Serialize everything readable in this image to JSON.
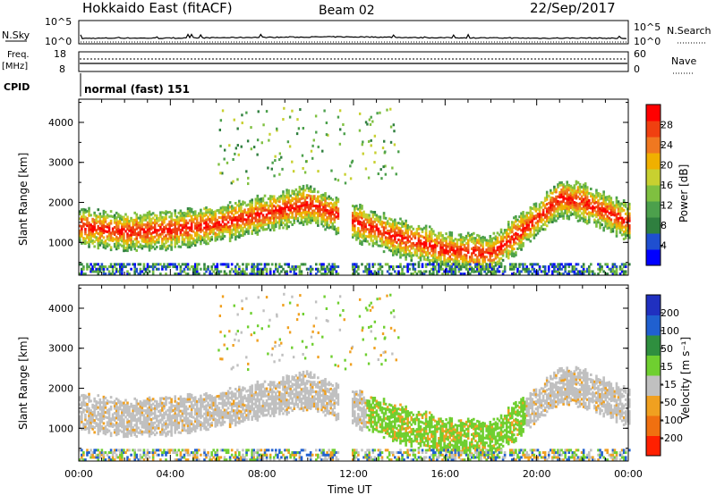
{
  "header": {
    "title": "Hokkaido East (fitACF)",
    "beam": "Beam 02",
    "date": "22/Sep/2017"
  },
  "chart_data": [
    {
      "type": "line",
      "panel": "noise",
      "ylabel": "N.Sky",
      "ylim_labels": [
        "10^0",
        "10^5"
      ],
      "right_labels": [
        "10^5",
        "10^0"
      ],
      "right_legend": "N.Search",
      "description_series": [
        {
          "name": "N.Sky",
          "values": [
            1.6,
            1.8,
            1.7,
            1.9,
            2.1,
            2.2,
            2.4,
            2.3,
            2.0,
            1.9,
            1.8,
            1.7,
            1.8,
            1.6
          ]
        }
      ]
    },
    {
      "type": "line",
      "panel": "frequency",
      "ylabel_line1": "Freq.",
      "ylabel_line2": "[MHz]",
      "ylim": [
        8,
        18
      ],
      "left_ticks": [
        "18",
        "8"
      ],
      "right_ticks": [
        "60",
        "0"
      ],
      "right_legend": "Nave",
      "cpid_label": "CPID",
      "cpid_text": "normal (fast) 151"
    },
    {
      "type": "heatmap",
      "panel": "power",
      "ylabel": "Slant Range [km]",
      "ylim": [
        180,
        4580
      ],
      "yticks": [
        "1000",
        "2000",
        "3000",
        "4000"
      ],
      "colorbar_label": "Power [dB]",
      "colorbar_ticks": [
        "4",
        "8",
        "12",
        "16",
        "20",
        "24",
        "28"
      ],
      "colorbar_colors": [
        "#0000ff",
        "#1f4fd0",
        "#2f7f3f",
        "#4ca04c",
        "#7fc040",
        "#c8d030",
        "#f0b000",
        "#f07820",
        "#f04010",
        "#ff0000"
      ],
      "echo_bands": [
        {
          "name": "main",
          "x": [
            0.0,
            2.0,
            4.0,
            6.0,
            8.0,
            10.0,
            12.0,
            14.0,
            16.0,
            18.0,
            20.0,
            21.0,
            22.0,
            24.0
          ],
          "y": [
            1400,
            1250,
            1300,
            1450,
            1700,
            1950,
            1500,
            1100,
            800,
            700,
            1600,
            2100,
            2000,
            1500
          ]
        }
      ]
    },
    {
      "type": "heatmap",
      "panel": "velocity",
      "ylabel": "Slant Range [km]",
      "ylim": [
        180,
        4580
      ],
      "yticks": [
        "1000",
        "2000",
        "3000",
        "4000"
      ],
      "colorbar_label": "Velocity [m s⁻¹]",
      "colorbar_ticks": [
        "200",
        "100",
        "50",
        "15",
        "-15",
        "-50",
        "-100",
        "-200"
      ],
      "colorbar_colors": [
        "#2030c0",
        "#2060d0",
        "#2f8f3f",
        "#6fcf30",
        "#c0c0c0",
        "#f0a020",
        "#f07010",
        "#ff2000"
      ],
      "xlabel": "Time UT",
      "xticks": [
        "00:00",
        "04:00",
        "08:00",
        "12:00",
        "16:00",
        "20:00",
        "00:00"
      ]
    }
  ]
}
